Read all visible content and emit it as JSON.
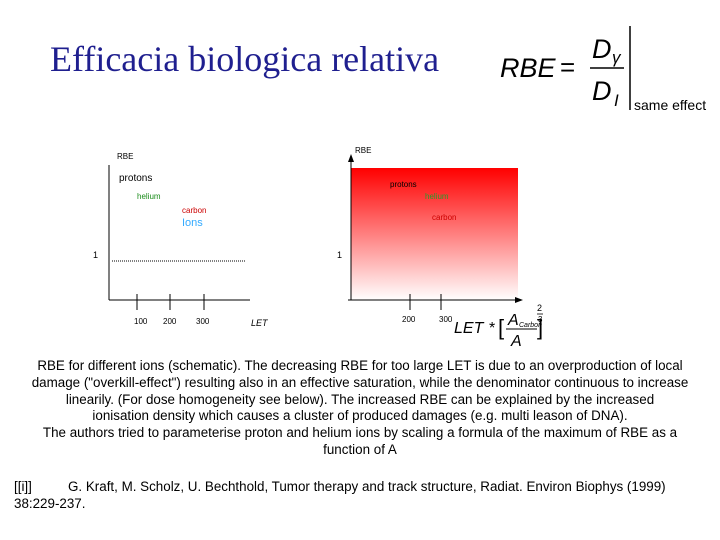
{
  "title": "Efficacia biologica relativa",
  "formula": {
    "lhs": "RBE",
    "equals": "=",
    "numerator": "D",
    "numerator_sub": "γ",
    "denominator": "D",
    "denominator_sub": "I",
    "condition": "same effect"
  },
  "left_diagram": {
    "y_label": "RBE",
    "one_label": "1",
    "labels": {
      "protons": "protons",
      "helium": "helium",
      "carbon": "carbon",
      "ions": "Ions"
    },
    "ticks": [
      "100",
      "200",
      "300"
    ],
    "x_label": "LET",
    "colors": {
      "protons": "#000000",
      "helium": "#1a8c1a",
      "carbon": "#cc0000",
      "ions": "#33aaff"
    }
  },
  "right_diagram": {
    "y_label": "RBE",
    "one_label": "1",
    "labels": {
      "protons": "protons",
      "helium": "helium",
      "carbon": "carbon"
    },
    "ticks": [
      "200",
      "300"
    ],
    "gradient_top_color": "#ff0000",
    "gradient_bottom_color": "#ffffff"
  },
  "scaling_formula": {
    "let": "LET",
    "star": "*",
    "bracket_open": "[",
    "A_carbon": "A",
    "carbon_sub": "Carbon",
    "A_denominator": "A",
    "bracket_close": "]",
    "exponent_top": "2",
    "exponent_bottom": "3"
  },
  "caption_lines": [
    "RBE for different ions (schematic). The decreasing RBE for too large LET is due to an overproduction of local",
    "damage (\"overkill-effect\") resulting also in an effective saturation, while the denominator continuous to increase",
    "linearily. (For dose homogeneity see below). The increased RBE can be explained by the increased",
    "ionisation density which causes a cluster of produced damages (e.g. multi leason of DNA).",
    "The authors tried to parameterise  proton and helium ions by scaling a formula of the maximum of RBE as a",
    "function of A"
  ],
  "reference": {
    "marker": "[[i]]",
    "text_line1": "G. Kraft, M. Scholz, U. Bechthold, Tumor therapy and track structure, Radiat. Environ Biophys (1999)",
    "text_line2": "38:229-237."
  }
}
